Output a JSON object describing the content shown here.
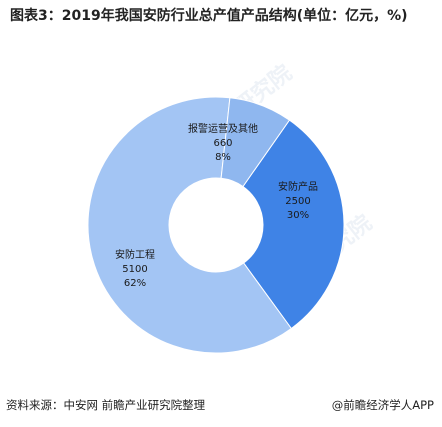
{
  "title": "图表3：2019年我国安防行业总产值产品结构(单位：亿元，%)",
  "source": "资料来源：中安网 前瞻产业研究院整理",
  "brand": "@前瞻经济学人APP",
  "watermark": "前瞻产业研究院",
  "chart_data": {
    "type": "pie",
    "variant": "donut",
    "slices": [
      {
        "name": "安防产品",
        "value": 2500,
        "pct": "30%",
        "color": "#3f83e6"
      },
      {
        "name": "安防工程",
        "value": 5100,
        "pct": "62%",
        "color": "#a3c5f4"
      },
      {
        "name": "报警运营及其他",
        "value": 660,
        "pct": "8%",
        "color": "#8fb7ef"
      }
    ]
  }
}
